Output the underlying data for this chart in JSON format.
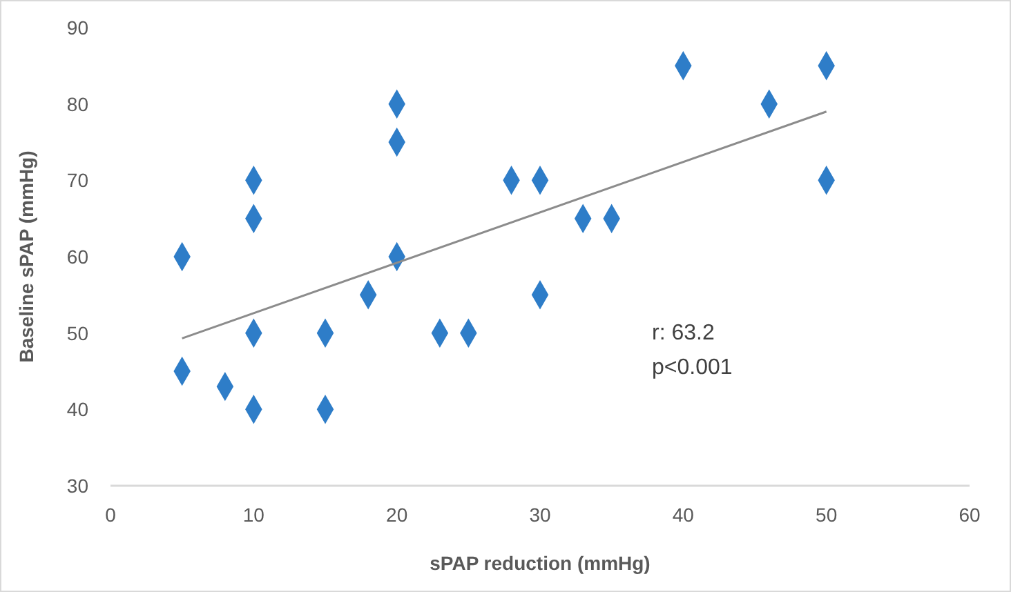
{
  "chart_data": {
    "type": "scatter",
    "xlabel": "sPAP reduction (mmHg)",
    "ylabel": "Baseline sPAP (mmHg)",
    "xlim": [
      0,
      60
    ],
    "ylim": [
      30,
      90
    ],
    "xticks": [
      0,
      10,
      20,
      30,
      40,
      50,
      60
    ],
    "yticks": [
      30,
      40,
      50,
      60,
      70,
      80,
      90
    ],
    "grid": false,
    "marker": "diamond",
    "annotations": [
      "r: 63.2",
      "p<0.001"
    ],
    "series": [
      {
        "color": "#2e7dc8",
        "x": [
          5,
          5,
          8,
          10,
          10,
          10,
          10,
          15,
          15,
          18,
          20,
          20,
          20,
          23,
          25,
          28,
          30,
          30,
          33,
          35,
          40,
          46,
          50,
          50
        ],
        "values": [
          60,
          45,
          43,
          70,
          65,
          50,
          40,
          50,
          40,
          55,
          80,
          75,
          60,
          50,
          50,
          70,
          70,
          55,
          65,
          65,
          85,
          80,
          85,
          70
        ]
      },
      {
        "type": "line",
        "color": "#8c8c8c",
        "marker": "none",
        "x": [
          5,
          50
        ],
        "values": [
          49.3,
          79
        ]
      }
    ]
  }
}
